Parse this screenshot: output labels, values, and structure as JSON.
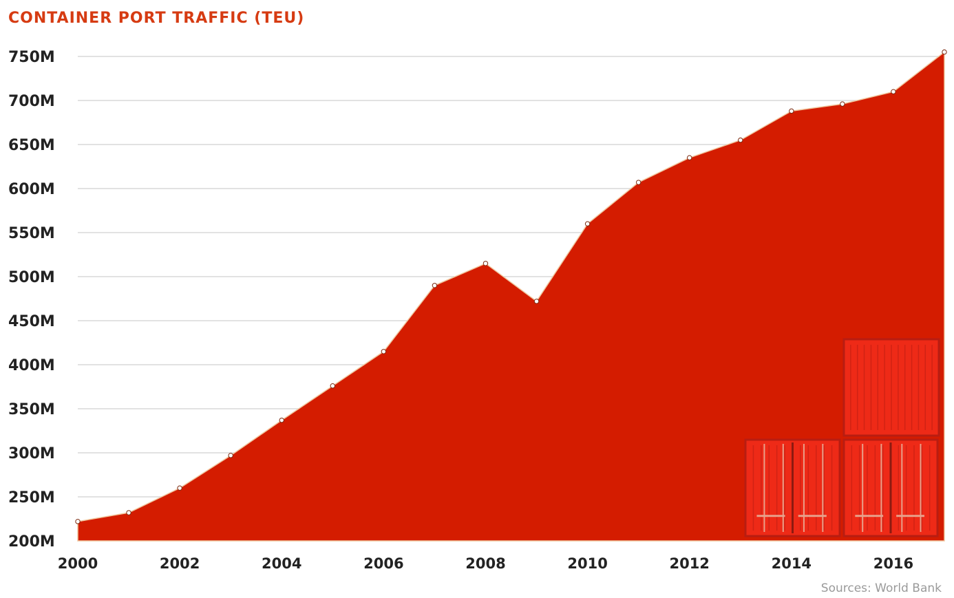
{
  "chart_data": {
    "type": "area",
    "title": "CONTAINER PORT TRAFFIC (TEU)",
    "source": "Sources: World Bank",
    "x": [
      2000,
      2001,
      2002,
      2003,
      2004,
      2005,
      2006,
      2007,
      2008,
      2009,
      2010,
      2011,
      2012,
      2013,
      2014,
      2015,
      2016,
      2017
    ],
    "values": [
      222,
      232,
      260,
      297,
      337,
      376,
      415,
      490,
      515,
      472,
      560,
      607,
      635,
      655,
      688,
      696,
      710,
      755
    ],
    "value_unit": "millions of TEU",
    "x_ticks": [
      "2000",
      "2002",
      "2004",
      "2006",
      "2008",
      "2010",
      "2012",
      "2014",
      "2016"
    ],
    "y_ticks": [
      "200M",
      "250M",
      "300M",
      "350M",
      "400M",
      "450M",
      "500M",
      "550M",
      "600M",
      "650M",
      "700M",
      "750M"
    ],
    "ylim": [
      200,
      750
    ],
    "xlim": [
      2000,
      2017
    ],
    "grid": true,
    "legend": "none",
    "colors": {
      "area": "#d41c00",
      "title": "#d63b12",
      "container": "#ee2a17",
      "container_dark": "#b81d12"
    }
  }
}
